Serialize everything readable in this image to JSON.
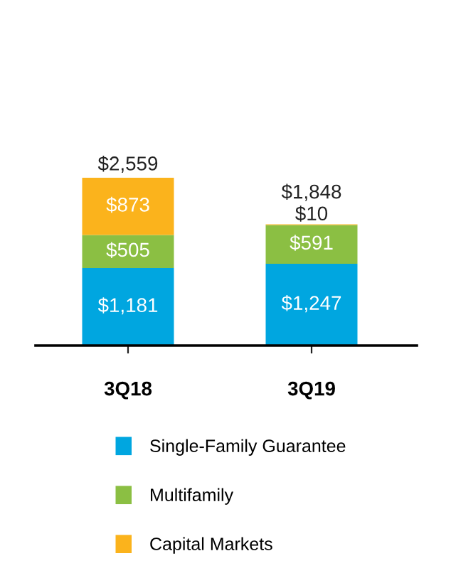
{
  "chart_data": {
    "type": "bar",
    "stacked": true,
    "categories": [
      "3Q18",
      "3Q19"
    ],
    "series": [
      {
        "name": "Single-Family Guarantee",
        "color": "#00a6e0",
        "values": [
          1181,
          1247
        ],
        "value_labels": [
          "$1,181",
          "$1,247"
        ]
      },
      {
        "name": "Multifamily",
        "color": "#8bbf43",
        "values": [
          505,
          591
        ],
        "value_labels": [
          "$505",
          "$591"
        ]
      },
      {
        "name": "Capital Markets",
        "color": "#fbb31c",
        "values": [
          873,
          10
        ],
        "value_labels": [
          "$873",
          "$10"
        ]
      }
    ],
    "totals": [
      "$2,559",
      "$1,848"
    ],
    "legend": "bottom",
    "grid": false
  }
}
